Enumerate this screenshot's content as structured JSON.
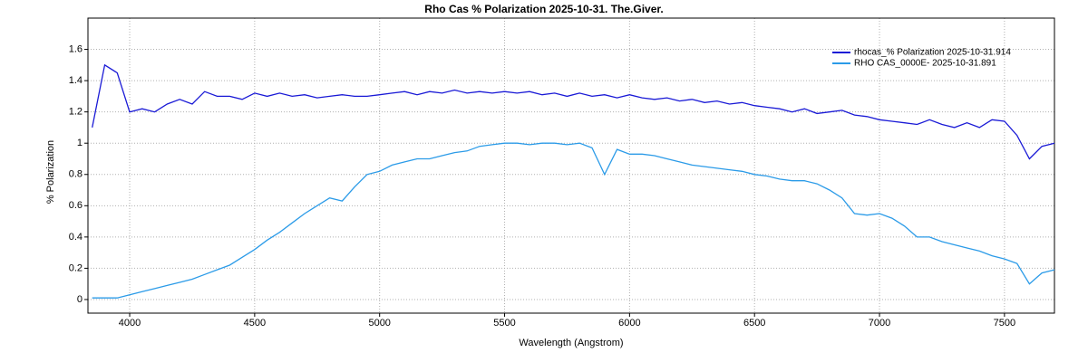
{
  "chart_data": {
    "type": "line",
    "title": "Rho Cas  % Polarization  2025-10-31.  The.Giver.",
    "x_label": "Wavelength (Angstrom)",
    "y_label": "% Polarization",
    "x": [
      3850,
      3900,
      3950,
      4000,
      4050,
      4100,
      4150,
      4200,
      4250,
      4300,
      4350,
      4400,
      4450,
      4500,
      4550,
      4600,
      4650,
      4700,
      4750,
      4800,
      4850,
      4900,
      4950,
      5000,
      5050,
      5100,
      5150,
      5200,
      5250,
      5300,
      5350,
      5400,
      5450,
      5500,
      5550,
      5600,
      5650,
      5700,
      5750,
      5800,
      5850,
      5900,
      5950,
      6000,
      6050,
      6100,
      6150,
      6200,
      6250,
      6300,
      6350,
      6400,
      6450,
      6500,
      6550,
      6600,
      6650,
      6700,
      6750,
      6800,
      6850,
      6900,
      6950,
      7000,
      7050,
      7100,
      7150,
      7200,
      7250,
      7300,
      7350,
      7400,
      7450,
      7500,
      7550,
      7600,
      7650,
      7700
    ],
    "series": [
      {
        "name": "rhocas_% Polarization 2025-10-31.914",
        "color": "#1a1ad6",
        "values": [
          1.1,
          1.5,
          1.45,
          1.2,
          1.22,
          1.2,
          1.25,
          1.28,
          1.25,
          1.33,
          1.3,
          1.3,
          1.28,
          1.32,
          1.3,
          1.32,
          1.3,
          1.31,
          1.29,
          1.3,
          1.31,
          1.3,
          1.3,
          1.31,
          1.32,
          1.33,
          1.31,
          1.33,
          1.32,
          1.34,
          1.32,
          1.33,
          1.32,
          1.33,
          1.32,
          1.33,
          1.31,
          1.32,
          1.3,
          1.32,
          1.3,
          1.31,
          1.29,
          1.31,
          1.29,
          1.28,
          1.29,
          1.27,
          1.28,
          1.26,
          1.27,
          1.25,
          1.26,
          1.24,
          1.23,
          1.22,
          1.2,
          1.22,
          1.19,
          1.2,
          1.21,
          1.18,
          1.17,
          1.15,
          1.14,
          1.13,
          1.12,
          1.15,
          1.12,
          1.1,
          1.13,
          1.1,
          1.15,
          1.14,
          1.05,
          0.9,
          0.98,
          1.0
        ]
      },
      {
        "name": "RHO CAS_0000E-  2025-10-31.891",
        "color": "#2b9be8",
        "values": [
          0.01,
          0.01,
          0.01,
          0.03,
          0.05,
          0.07,
          0.09,
          0.11,
          0.13,
          0.16,
          0.19,
          0.22,
          0.27,
          0.32,
          0.38,
          0.43,
          0.49,
          0.55,
          0.6,
          0.65,
          0.63,
          0.72,
          0.8,
          0.82,
          0.86,
          0.88,
          0.9,
          0.9,
          0.92,
          0.94,
          0.95,
          0.98,
          0.99,
          1.0,
          1.0,
          0.99,
          1.0,
          1.0,
          0.99,
          1.0,
          0.97,
          0.8,
          0.96,
          0.93,
          0.93,
          0.92,
          0.9,
          0.88,
          0.86,
          0.85,
          0.84,
          0.83,
          0.82,
          0.8,
          0.79,
          0.77,
          0.76,
          0.76,
          0.74,
          0.7,
          0.65,
          0.55,
          0.54,
          0.55,
          0.52,
          0.47,
          0.4,
          0.4,
          0.37,
          0.35,
          0.33,
          0.31,
          0.28,
          0.26,
          0.23,
          0.1,
          0.17,
          0.19
        ]
      }
    ],
    "xlim": [
      3833,
      7700
    ],
    "ylim": [
      -0.087,
      1.8
    ],
    "xticks": [
      4000,
      4500,
      5000,
      5500,
      6000,
      6500,
      7000,
      7500
    ],
    "yticks": [
      0,
      0.2,
      0.4,
      0.6,
      0.8,
      1,
      1.2,
      1.4,
      1.6
    ],
    "grid": true,
    "legend": "upper right"
  }
}
